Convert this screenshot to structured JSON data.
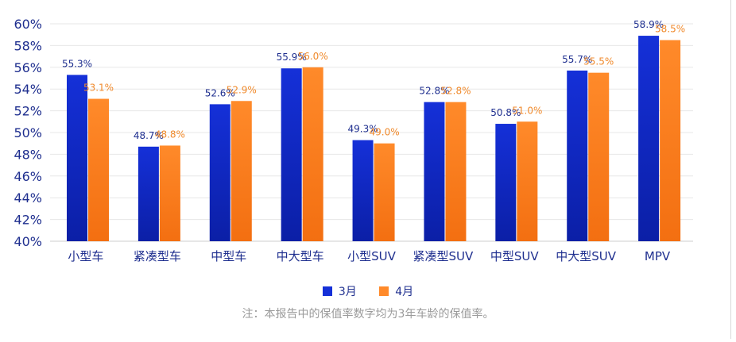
{
  "chart_data": {
    "type": "bar",
    "categories": [
      "小型车",
      "紧凑型车",
      "中型车",
      "中大型车",
      "小型SUV",
      "紧凑型SUV",
      "中型SUV",
      "中大型SUV",
      "MPV"
    ],
    "series": [
      {
        "name": "3月",
        "values": [
          55.3,
          48.7,
          52.6,
          55.9,
          49.3,
          52.8,
          50.8,
          55.7,
          58.9
        ],
        "labels": [
          "55.3%",
          "48.7%",
          "52.6%",
          "55.9%",
          "49.3%",
          "52.8%",
          "50.8%",
          "55.7%",
          "58.9%"
        ],
        "color": "#1530d8",
        "label_color": "#1f2f8f"
      },
      {
        "name": "4月",
        "values": [
          53.1,
          48.8,
          52.9,
          56.0,
          49.0,
          52.8,
          51.0,
          55.5,
          58.5
        ],
        "labels": [
          "53.1%",
          "48.8%",
          "52.9%",
          "56.0%",
          "49.0%",
          "52.8%",
          "51.0%",
          "55.5%",
          "58.5%"
        ],
        "color": "#ff8a2a",
        "label_color": "#f08a2c"
      }
    ],
    "ylim": [
      40,
      60
    ],
    "y_ticks": [
      40,
      42,
      44,
      46,
      48,
      50,
      52,
      54,
      56,
      58,
      60
    ],
    "y_tick_labels": [
      "40%",
      "42%",
      "44%",
      "46%",
      "48%",
      "50%",
      "52%",
      "54%",
      "56%",
      "58%",
      "60%"
    ],
    "grid": true,
    "legend_position": "bottom-center",
    "note": "注：本报告中的保值率数字均为3年车龄的保值率。"
  }
}
